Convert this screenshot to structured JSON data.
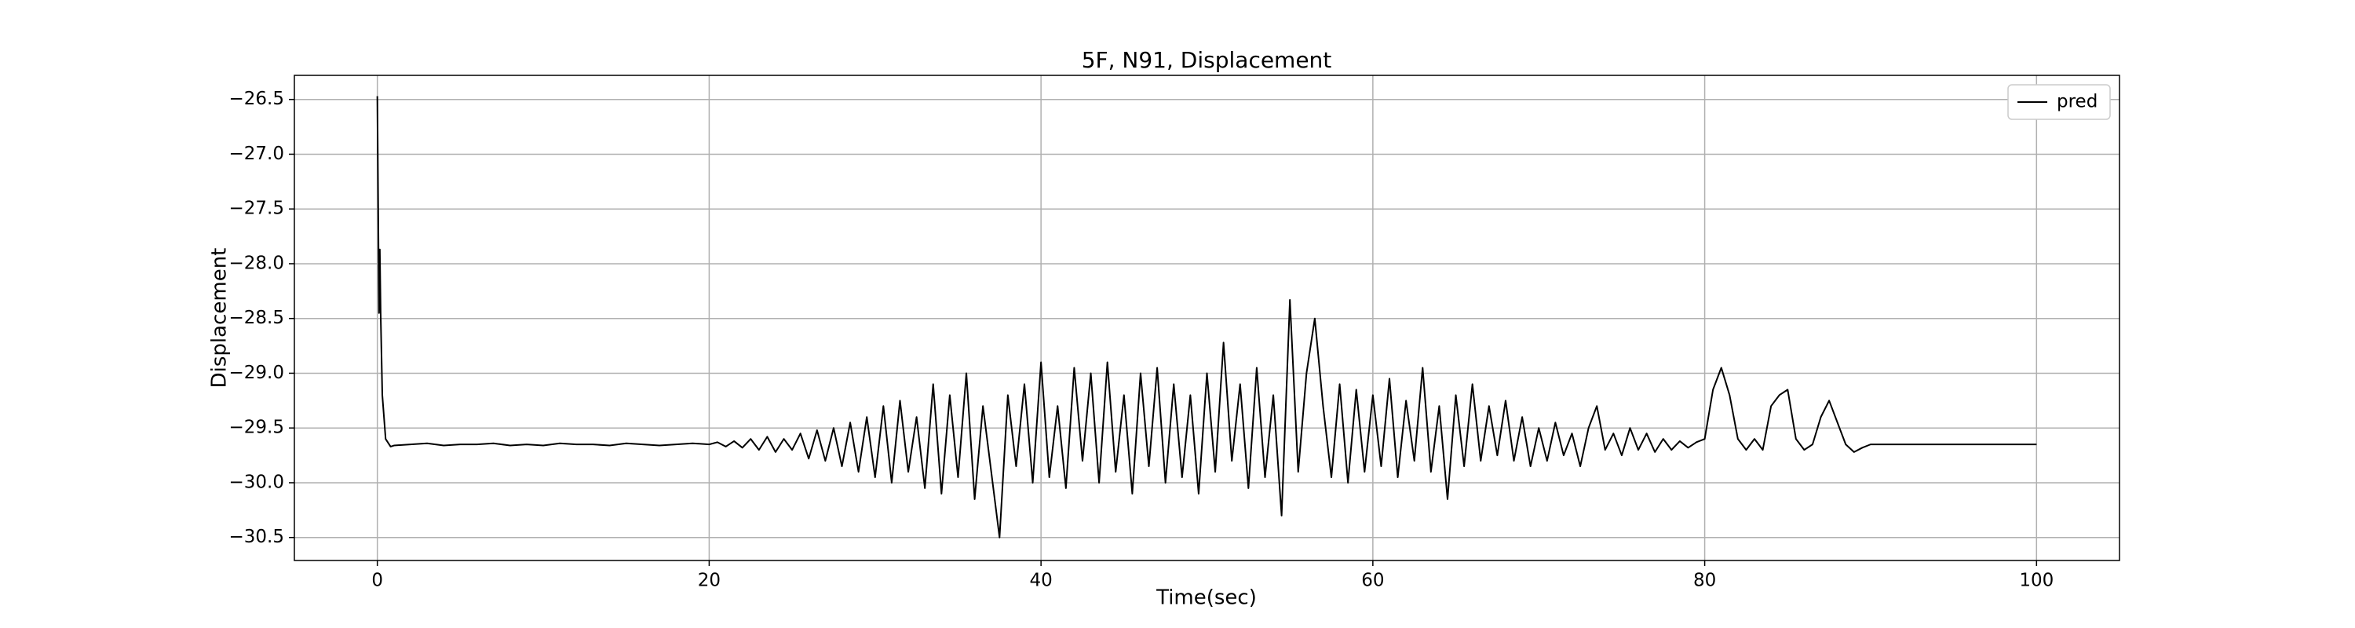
{
  "chart_data": {
    "type": "line",
    "title": "5F, N91, Displacement",
    "xlabel": "Time(sec)",
    "ylabel": "Displacement",
    "xlim": [
      -5,
      105
    ],
    "xticks": [
      0,
      20,
      40,
      60,
      80,
      100
    ],
    "ylim": [
      -30.71,
      -26.28
    ],
    "yticks": [
      {
        "value": -26.5,
        "label": "−26.5"
      },
      {
        "value": -27.0,
        "label": "−27.0"
      },
      {
        "value": -27.5,
        "label": "−27.5"
      },
      {
        "value": -28.0,
        "label": "−28.0"
      },
      {
        "value": -28.5,
        "label": "−28.5"
      },
      {
        "value": -29.0,
        "label": "−29.0"
      },
      {
        "value": -29.5,
        "label": "−29.5"
      },
      {
        "value": -30.0,
        "label": "−30.0"
      },
      {
        "value": -30.5,
        "label": "−30.5"
      }
    ],
    "grid": true,
    "legend": "upper right",
    "x": [
      0,
      0.1,
      0.15,
      0.2,
      0.3,
      0.5,
      0.8,
      1,
      2,
      3,
      4,
      5,
      6,
      7,
      8,
      9,
      10,
      11,
      12,
      13,
      14,
      15,
      16,
      17,
      18,
      19,
      20,
      20.5,
      21,
      21.5,
      22,
      22.5,
      23,
      23.5,
      24,
      24.5,
      25,
      25.5,
      26,
      26.5,
      27,
      27.5,
      28,
      28.5,
      29,
      29.5,
      30,
      30.5,
      31,
      31.5,
      32,
      32.5,
      33,
      33.5,
      34,
      34.5,
      35,
      35.5,
      36,
      36.5,
      37,
      37.5,
      38,
      38.5,
      39,
      39.5,
      40,
      40.5,
      41,
      41.5,
      42,
      42.5,
      43,
      43.5,
      44,
      44.5,
      45,
      45.5,
      46,
      46.5,
      47,
      47.5,
      48,
      48.5,
      49,
      49.5,
      50,
      50.5,
      51,
      51.5,
      52,
      52.5,
      53,
      53.5,
      54,
      54.5,
      55,
      55.5,
      56,
      56.5,
      57,
      57.5,
      58,
      58.5,
      59,
      59.5,
      60,
      60.5,
      61,
      61.5,
      62,
      62.5,
      63,
      63.5,
      64,
      64.5,
      65,
      65.5,
      66,
      66.5,
      67,
      67.5,
      68,
      68.5,
      69,
      69.5,
      70,
      70.5,
      71,
      71.5,
      72,
      72.5,
      73,
      73.5,
      74,
      74.5,
      75,
      75.5,
      76,
      76.5,
      77,
      77.5,
      78,
      78.5,
      79,
      79.5,
      80,
      80.5,
      81,
      81.5,
      82,
      82.5,
      83,
      83.5,
      84,
      84.5,
      85,
      85.5,
      86,
      86.5,
      87,
      87.5,
      88,
      88.5,
      89,
      89.5,
      90,
      95,
      100
    ],
    "series": [
      {
        "name": "pred",
        "color": "#000000",
        "values": [
          -26.47,
          -28.45,
          -27.87,
          -28.45,
          -29.2,
          -29.6,
          -29.67,
          -29.66,
          -29.65,
          -29.64,
          -29.66,
          -29.65,
          -29.65,
          -29.64,
          -29.66,
          -29.65,
          -29.66,
          -29.64,
          -29.65,
          -29.65,
          -29.66,
          -29.64,
          -29.65,
          -29.66,
          -29.65,
          -29.64,
          -29.65,
          -29.63,
          -29.67,
          -29.62,
          -29.68,
          -29.6,
          -29.7,
          -29.58,
          -29.72,
          -29.6,
          -29.7,
          -29.55,
          -29.78,
          -29.52,
          -29.8,
          -29.5,
          -29.85,
          -29.45,
          -29.9,
          -29.4,
          -29.95,
          -29.3,
          -30.0,
          -29.25,
          -29.9,
          -29.4,
          -30.05,
          -29.1,
          -30.1,
          -29.2,
          -29.95,
          -29.0,
          -30.15,
          -29.3,
          -29.9,
          -30.5,
          -29.2,
          -29.85,
          -29.1,
          -30.0,
          -28.9,
          -29.95,
          -29.3,
          -30.05,
          -28.95,
          -29.8,
          -29.0,
          -30.0,
          -28.9,
          -29.9,
          -29.2,
          -30.1,
          -29.0,
          -29.85,
          -28.95,
          -30.0,
          -29.1,
          -29.95,
          -29.2,
          -30.1,
          -29.0,
          -29.9,
          -28.72,
          -29.8,
          -29.1,
          -30.05,
          -28.95,
          -29.95,
          -29.2,
          -30.3,
          -28.33,
          -29.9,
          -29.0,
          -28.5,
          -29.3,
          -29.95,
          -29.1,
          -30.0,
          -29.15,
          -29.9,
          -29.2,
          -29.85,
          -29.05,
          -29.95,
          -29.25,
          -29.8,
          -28.95,
          -29.9,
          -29.3,
          -30.15,
          -29.2,
          -29.85,
          -29.1,
          -29.8,
          -29.3,
          -29.75,
          -29.25,
          -29.8,
          -29.4,
          -29.85,
          -29.5,
          -29.8,
          -29.45,
          -29.75,
          -29.55,
          -29.85,
          -29.5,
          -29.3,
          -29.7,
          -29.55,
          -29.75,
          -29.5,
          -29.7,
          -29.55,
          -29.72,
          -29.6,
          -29.7,
          -29.62,
          -29.68,
          -29.63,
          -29.6,
          -29.15,
          -28.95,
          -29.2,
          -29.6,
          -29.7,
          -29.6,
          -29.7,
          -29.3,
          -29.2,
          -29.15,
          -29.6,
          -29.7,
          -29.65,
          -29.4,
          -29.25,
          -29.45,
          -29.65,
          -29.72,
          -29.68,
          -29.65,
          -29.65,
          -29.65
        ]
      }
    ]
  }
}
